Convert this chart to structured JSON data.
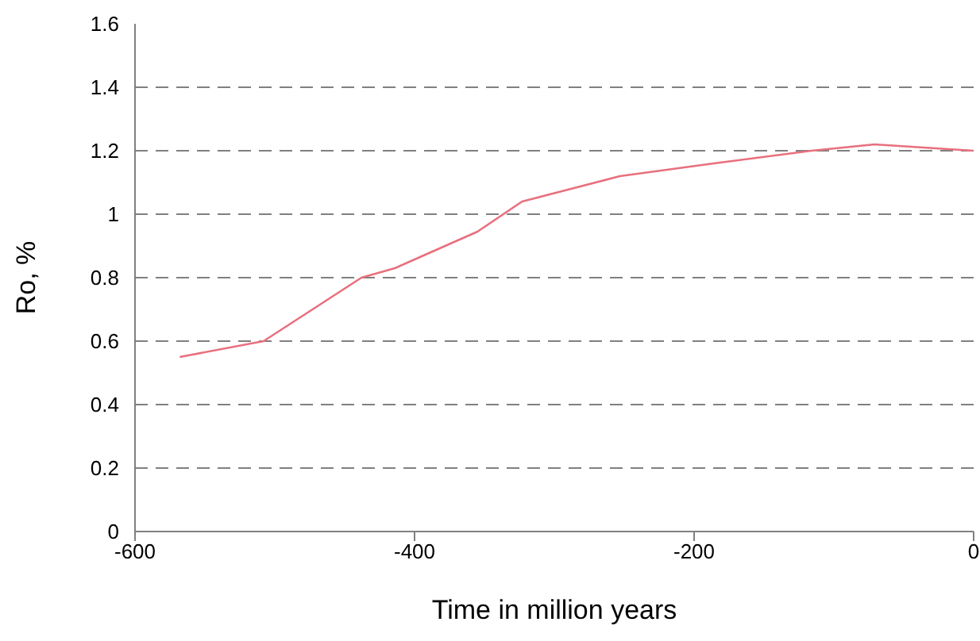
{
  "chart_data": {
    "type": "line",
    "xlabel": "Time in million years",
    "ylabel": "Ro, %",
    "x": [
      -568,
      -508,
      -438,
      -414,
      -355,
      -323,
      -253,
      -186,
      -116,
      -71,
      0
    ],
    "series": [
      {
        "color": "#e8707e",
        "values": [
          0.55,
          0.6,
          0.8,
          0.83,
          0.945,
          1.04,
          1.12,
          1.16,
          1.2,
          1.22,
          1.2
        ]
      }
    ],
    "xlim": [
      -600,
      0
    ],
    "xticks": [
      -600,
      -400,
      -200,
      0
    ],
    "ylim": [
      0,
      1.6
    ],
    "yticks": [
      0,
      0.2,
      0.4,
      0.6,
      0.8,
      1,
      1.2,
      1.4,
      1.6
    ],
    "grid": "y",
    "marker": "none",
    "line_style": "solid",
    "legend": false
  }
}
